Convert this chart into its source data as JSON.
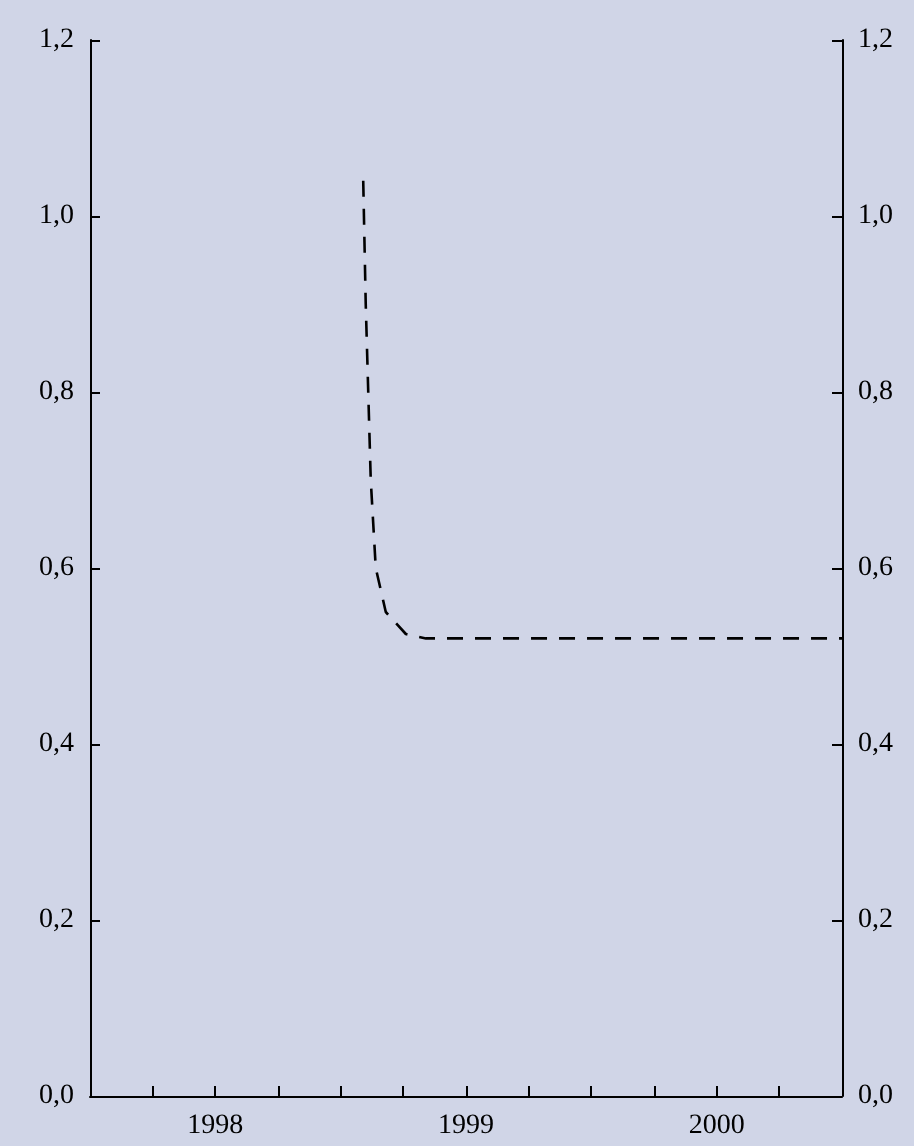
{
  "chart_data": {
    "type": "line",
    "line_style": "dashed",
    "marker": "none",
    "grid": false,
    "x": [
      1999.09,
      1999.1,
      1999.12,
      1999.14,
      1999.18,
      1999.26,
      1999.34,
      2001
    ],
    "series": [
      {
        "color": "#000000",
        "values": [
          1.04,
          0.9,
          0.7,
          0.6,
          0.55,
          0.525,
          0.52,
          0.52
        ]
      }
    ],
    "xlim": [
      1998,
      2001
    ],
    "xticks": [
      {
        "value": 1998.25,
        "label": null
      },
      {
        "value": 1998.5,
        "label": "1998"
      },
      {
        "value": 1998.75,
        "label": null
      },
      {
        "value": 1999,
        "label": null
      },
      {
        "value": 1999.25,
        "label": null
      },
      {
        "value": 1999.5,
        "label": "1999"
      },
      {
        "value": 1999.75,
        "label": null
      },
      {
        "value": 2000,
        "label": null
      },
      {
        "value": 2000.25,
        "label": null
      },
      {
        "value": 2000.5,
        "label": "2000"
      },
      {
        "value": 2000.75,
        "label": null
      }
    ],
    "ylim": [
      0,
      1.2
    ],
    "yticks": [
      {
        "value": 0,
        "label": "0,0"
      },
      {
        "value": 0.2,
        "label": "0,2"
      },
      {
        "value": 0.4,
        "label": "0,4"
      },
      {
        "value": 0.6,
        "label": "0,6"
      },
      {
        "value": 0.8,
        "label": "0,8"
      },
      {
        "value": 1,
        "label": "1,0"
      },
      {
        "value": 1.2,
        "label": "1,2"
      }
    ],
    "y2lim": [
      0,
      1.2
    ],
    "y2ticks": [
      {
        "value": 0,
        "label": "0,0"
      },
      {
        "value": 0.2,
        "label": "0,2"
      },
      {
        "value": 0.4,
        "label": "0,4"
      },
      {
        "value": 0.6,
        "label": "0,6"
      },
      {
        "value": 0.8,
        "label": "0,8"
      },
      {
        "value": 1,
        "label": "1,0"
      },
      {
        "value": 1.2,
        "label": "1,2"
      }
    ]
  }
}
